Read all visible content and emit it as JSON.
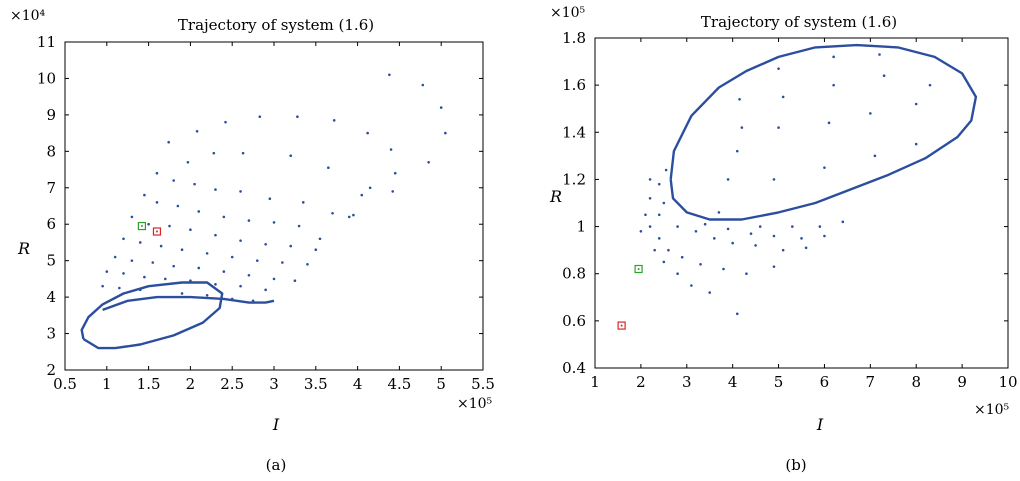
{
  "chart_data": [
    {
      "type": "scatter",
      "panel_label": "(a)",
      "title": "Trajectory of system (1.6)",
      "xlabel": "I",
      "ylabel": "R",
      "x_multiplier": "×10⁵",
      "y_multiplier": "×10⁴",
      "xlim": [
        0.5,
        5.5
      ],
      "ylim": [
        2,
        11
      ],
      "xticks": [
        "0.5",
        "1",
        "1.5",
        "2",
        "2.5",
        "3",
        "3.5",
        "4",
        "4.5",
        "5",
        "5.5"
      ],
      "yticks": [
        "2",
        "3",
        "4",
        "5",
        "6",
        "7",
        "8",
        "9",
        "10",
        "11"
      ],
      "grid": false,
      "series": [
        {
          "color": "#2b4f9e",
          "marker": "dot",
          "points": [
            [
              4.38,
              10.1
            ],
            [
              4.78,
              9.82
            ],
            [
              5.0,
              9.2
            ],
            [
              5.05,
              8.5
            ],
            [
              4.85,
              7.7
            ],
            [
              2.08,
              8.55
            ],
            [
              2.42,
              8.8
            ],
            [
              2.83,
              8.95
            ],
            [
              3.28,
              8.95
            ],
            [
              3.72,
              8.85
            ],
            [
              4.12,
              8.5
            ],
            [
              4.4,
              8.05
            ],
            [
              4.45,
              7.4
            ],
            [
              1.74,
              8.25
            ],
            [
              1.97,
              7.7
            ],
            [
              2.28,
              7.95
            ],
            [
              2.63,
              7.95
            ],
            [
              3.2,
              7.88
            ],
            [
              3.65,
              7.55
            ],
            [
              4.15,
              7.0
            ],
            [
              4.42,
              6.9
            ],
            [
              1.6,
              7.4
            ],
            [
              1.8,
              7.2
            ],
            [
              2.05,
              7.1
            ],
            [
              2.3,
              6.95
            ],
            [
              2.6,
              6.9
            ],
            [
              2.95,
              6.7
            ],
            [
              3.35,
              6.6
            ],
            [
              3.7,
              6.3
            ],
            [
              3.9,
              6.2
            ],
            [
              3.95,
              6.25
            ],
            [
              4.05,
              6.8
            ],
            [
              1.45,
              6.8
            ],
            [
              1.6,
              6.6
            ],
            [
              1.85,
              6.5
            ],
            [
              2.1,
              6.35
            ],
            [
              2.4,
              6.2
            ],
            [
              2.7,
              6.1
            ],
            [
              3.0,
              6.05
            ],
            [
              3.3,
              5.95
            ],
            [
              3.55,
              5.6
            ],
            [
              1.3,
              6.2
            ],
            [
              1.5,
              6.0
            ],
            [
              1.75,
              5.95
            ],
            [
              2.0,
              5.85
            ],
            [
              2.3,
              5.7
            ],
            [
              2.6,
              5.55
            ],
            [
              2.9,
              5.45
            ],
            [
              3.2,
              5.4
            ],
            [
              3.5,
              5.3
            ],
            [
              1.2,
              5.6
            ],
            [
              1.4,
              5.5
            ],
            [
              1.65,
              5.4
            ],
            [
              1.9,
              5.3
            ],
            [
              2.2,
              5.2
            ],
            [
              2.5,
              5.1
            ],
            [
              2.8,
              5.0
            ],
            [
              3.1,
              4.95
            ],
            [
              3.4,
              4.9
            ],
            [
              1.1,
              5.1
            ],
            [
              1.3,
              5.0
            ],
            [
              1.55,
              4.95
            ],
            [
              1.8,
              4.85
            ],
            [
              2.1,
              4.8
            ],
            [
              2.4,
              4.7
            ],
            [
              2.7,
              4.6
            ],
            [
              3.0,
              4.5
            ],
            [
              3.25,
              4.45
            ],
            [
              1.0,
              4.7
            ],
            [
              1.2,
              4.65
            ],
            [
              1.45,
              4.55
            ],
            [
              1.7,
              4.5
            ],
            [
              2.0,
              4.45
            ],
            [
              2.3,
              4.35
            ],
            [
              2.6,
              4.3
            ],
            [
              2.9,
              4.2
            ],
            [
              0.95,
              4.3
            ],
            [
              1.15,
              4.25
            ],
            [
              1.4,
              4.2
            ],
            [
              1.9,
              4.1
            ],
            [
              2.2,
              4.05
            ],
            [
              2.5,
              3.95
            ],
            [
              2.75,
              3.9
            ]
          ]
        },
        {
          "color": "#2b4f9e",
          "marker": "line",
          "points": [
            [
              0.72,
              2.85
            ],
            [
              0.7,
              3.1
            ],
            [
              0.78,
              3.45
            ],
            [
              0.95,
              3.8
            ],
            [
              1.2,
              4.1
            ],
            [
              1.5,
              4.3
            ],
            [
              1.9,
              4.4
            ],
            [
              2.2,
              4.4
            ],
            [
              2.38,
              4.1
            ],
            [
              2.35,
              3.7
            ],
            [
              2.15,
              3.3
            ],
            [
              1.8,
              2.95
            ],
            [
              1.4,
              2.7
            ],
            [
              1.1,
              2.6
            ],
            [
              0.9,
              2.6
            ],
            [
              0.72,
              2.85
            ]
          ]
        },
        {
          "color": "#2b4f9e",
          "marker": "line",
          "points": [
            [
              0.95,
              3.65
            ],
            [
              1.25,
              3.9
            ],
            [
              1.6,
              4.0
            ],
            [
              2.0,
              4.0
            ],
            [
              2.4,
              3.95
            ],
            [
              2.7,
              3.85
            ],
            [
              2.9,
              3.85
            ],
            [
              3.0,
              3.9
            ]
          ]
        },
        {
          "color": "#2ca02c",
          "marker": "square",
          "points": [
            [
              1.42,
              5.95
            ]
          ]
        },
        {
          "color": "#d62728",
          "marker": "square",
          "points": [
            [
              1.6,
              5.8
            ]
          ]
        }
      ]
    },
    {
      "type": "scatter",
      "panel_label": "(b)",
      "title": "Trajectory of system (1.6)",
      "xlabel": "I",
      "ylabel": "R",
      "x_multiplier": "×10⁵",
      "y_multiplier": "×10⁵",
      "xlim": [
        1,
        10
      ],
      "ylim": [
        0.4,
        1.8
      ],
      "xticks": [
        "1",
        "2",
        "3",
        "4",
        "5",
        "6",
        "7",
        "8",
        "9",
        "10"
      ],
      "yticks": [
        "0.4",
        "0.6",
        "0.8",
        "1",
        "1.2",
        "1.4",
        "1.6",
        "1.8"
      ],
      "grid": false,
      "series": [
        {
          "color": "#2b4f9e",
          "marker": "dot",
          "points": [
            [
              2.3,
              0.9
            ],
            [
              2.5,
              0.85
            ],
            [
              2.8,
              0.8
            ],
            [
              3.1,
              0.75
            ],
            [
              3.5,
              0.72
            ],
            [
              4.1,
              0.63
            ],
            [
              2.0,
              0.98
            ],
            [
              2.2,
              1.0
            ],
            [
              2.4,
              0.95
            ],
            [
              2.6,
              0.9
            ],
            [
              2.9,
              0.87
            ],
            [
              3.3,
              0.84
            ],
            [
              3.8,
              0.82
            ],
            [
              4.3,
              0.8
            ],
            [
              4.9,
              0.83
            ],
            [
              2.1,
              1.05
            ],
            [
              2.4,
              1.05
            ],
            [
              2.8,
              1.0
            ],
            [
              3.2,
              0.98
            ],
            [
              3.6,
              0.95
            ],
            [
              4.0,
              0.93
            ],
            [
              4.5,
              0.92
            ],
            [
              5.1,
              0.9
            ],
            [
              5.6,
              0.91
            ],
            [
              2.2,
              1.12
            ],
            [
              2.5,
              1.1
            ],
            [
              3.4,
              1.01
            ],
            [
              3.9,
              0.99
            ],
            [
              4.4,
              0.97
            ],
            [
              4.9,
              0.96
            ],
            [
              5.5,
              0.95
            ],
            [
              6.0,
              0.96
            ],
            [
              3.7,
              1.06
            ],
            [
              4.6,
              1.0
            ],
            [
              5.3,
              1.0
            ],
            [
              5.9,
              1.0
            ],
            [
              6.4,
              1.02
            ],
            [
              2.4,
              1.18
            ],
            [
              2.2,
              1.2
            ],
            [
              2.55,
              1.24
            ],
            [
              3.9,
              1.2
            ],
            [
              4.9,
              1.2
            ],
            [
              6.0,
              1.25
            ],
            [
              7.1,
              1.3
            ],
            [
              8.0,
              1.35
            ],
            [
              4.1,
              1.32
            ],
            [
              5.0,
              1.42
            ],
            [
              6.1,
              1.44
            ],
            [
              7.0,
              1.48
            ],
            [
              8.0,
              1.52
            ],
            [
              4.2,
              1.42
            ],
            [
              5.1,
              1.55
            ],
            [
              6.2,
              1.6
            ],
            [
              7.3,
              1.64
            ],
            [
              8.3,
              1.6
            ],
            [
              4.15,
              1.54
            ],
            [
              5.0,
              1.67
            ],
            [
              6.2,
              1.72
            ],
            [
              7.2,
              1.73
            ]
          ]
        },
        {
          "color": "#2b4f9e",
          "marker": "line",
          "points": [
            [
              2.65,
              1.2
            ],
            [
              2.72,
              1.32
            ],
            [
              3.1,
              1.47
            ],
            [
              3.7,
              1.59
            ],
            [
              4.3,
              1.66
            ],
            [
              5.0,
              1.72
            ],
            [
              5.8,
              1.76
            ],
            [
              6.7,
              1.77
            ],
            [
              7.6,
              1.76
            ],
            [
              8.4,
              1.72
            ],
            [
              9.0,
              1.65
            ],
            [
              9.3,
              1.55
            ],
            [
              9.2,
              1.45
            ],
            [
              8.9,
              1.38
            ],
            [
              8.2,
              1.29
            ],
            [
              7.4,
              1.22
            ],
            [
              6.6,
              1.16
            ],
            [
              5.8,
              1.1
            ],
            [
              5.0,
              1.06
            ],
            [
              4.2,
              1.03
            ],
            [
              3.5,
              1.03
            ],
            [
              3.0,
              1.06
            ],
            [
              2.7,
              1.12
            ],
            [
              2.65,
              1.2
            ]
          ]
        },
        {
          "color": "#2ca02c",
          "marker": "square",
          "points": [
            [
              1.95,
              0.82
            ]
          ]
        },
        {
          "color": "#d62728",
          "marker": "square",
          "points": [
            [
              1.58,
              0.58
            ]
          ]
        }
      ]
    }
  ]
}
